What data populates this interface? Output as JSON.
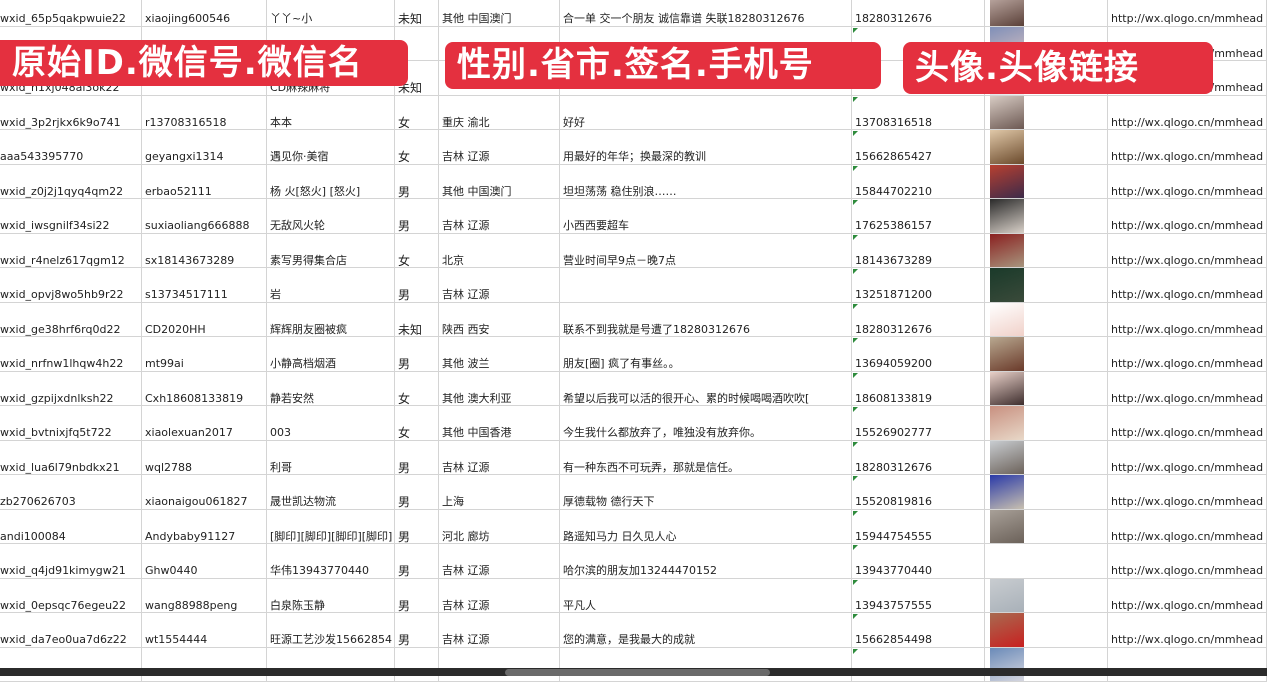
{
  "banners": [
    "原始ID.微信号.微信名",
    "性别.省市.签名.手机号",
    "头像.头像链接"
  ],
  "colors": {
    "banner": "#e4303f",
    "grid": "#d4d4d4",
    "comment_marker": "#2e8b3c"
  },
  "rows": [
    {
      "id": "wxid_65p5qakpwuie22",
      "wxno": "xiaojing600546",
      "name": "丫丫~小",
      "gender": "未知",
      "region": "其他 中国澳门",
      "sign": "合一单 交一个朋友 诚信靠谱 失联18280312676",
      "phone": "18280312676",
      "url": "http://wx.qlogo.cn/mmhead",
      "avatar": [
        "#c9b6b0",
        "#5a4038"
      ]
    },
    {
      "id": "",
      "wxno": "",
      "name": "",
      "gender": "",
      "region": "",
      "sign": "",
      "phone": "",
      "url": "http://wx.qlogo.cn/mmhead",
      "avatar": [
        "#7f8fb8",
        "#d8c0c0"
      ]
    },
    {
      "id": "wxid_h1xj048al3ok22",
      "wxno": "",
      "name": "CD麻辣麻将",
      "gender": "未知",
      "region": "",
      "sign": "",
      "phone": "",
      "url": "http://wx.qlogo.cn/mmhead",
      "avatar": [
        "#c8c8d0",
        "#f0f0f0"
      ]
    },
    {
      "id": "wxid_3p2rjkx6k9o741",
      "wxno": "r13708316518",
      "name": "本本",
      "gender": "女",
      "region": "重庆 渝北",
      "sign": "好好",
      "phone": "13708316518",
      "url": "http://wx.qlogo.cn/mmhead",
      "avatar": [
        "#d8ccc4",
        "#6a5650"
      ]
    },
    {
      "id": "aaa543395770",
      "wxno": "geyangxi1314",
      "name": "遇见你·美宿",
      "gender": "女",
      "region": "吉林 辽源",
      "sign": "用最好的年华；换最深的教训",
      "phone": "15662865427",
      "url": "http://wx.qlogo.cn/mmhead",
      "avatar": [
        "#e0c8a8",
        "#6b4a2c"
      ]
    },
    {
      "id": "wxid_z0j2j1qyq4qm22",
      "wxno": "erbao52111",
      "name": "杨 火[怒火] [怒火]",
      "gender": "男",
      "region": "其他 中国澳门",
      "sign": "坦坦荡荡 稳住别浪……",
      "phone": "15844702210",
      "url": "http://wx.qlogo.cn/mmhead",
      "avatar": [
        "#b84030",
        "#3a2a4a"
      ]
    },
    {
      "id": "wxid_iwsgnilf34si22",
      "wxno": "suxiaoliang666888",
      "name": "无敌风火轮",
      "gender": "男",
      "region": "吉林 辽源",
      "sign": "小西西要超车",
      "phone": "17625386157",
      "url": "http://wx.qlogo.cn/mmhead",
      "avatar": [
        "#2a2a2a",
        "#d8d0c8"
      ]
    },
    {
      "id": "wxid_r4nelz617qgm12",
      "wxno": "sx18143673289",
      "name": "素写男得集合店",
      "gender": "女",
      "region": "北京",
      "sign": "营业时间早9点－晚7点",
      "phone": "18143673289",
      "url": "http://wx.qlogo.cn/mmhead",
      "avatar": [
        "#8a2020",
        "#a89880"
      ]
    },
    {
      "id": "wxid_opvj8wo5hb9r22",
      "wxno": "s13734517111",
      "name": "岩",
      "gender": "男",
      "region": "吉林 辽源",
      "sign": "",
      "phone": "13251871200",
      "url": "http://wx.qlogo.cn/mmhead",
      "avatar": [
        "#1a3a2a",
        "#3a4a3a"
      ]
    },
    {
      "id": "wxid_ge38hrf6rq0d22",
      "wxno": "CD2020HH",
      "name": "辉辉朋友圈被疯",
      "gender": "未知",
      "region": "陕西 西安",
      "sign": "联系不到我就是号遭了18280312676",
      "phone": "18280312676",
      "url": "http://wx.qlogo.cn/mmhead",
      "avatar": [
        "#ffffff",
        "#f0d0c8"
      ]
    },
    {
      "id": "wxid_nrfnw1lhqw4h22",
      "wxno": "mt99ai",
      "name": "小静高档烟酒",
      "gender": "男",
      "region": "其他 波兰",
      "sign": "朋友[圈] 疯了有事丝。。",
      "phone": "13694059200",
      "url": "http://wx.qlogo.cn/mmhead",
      "avatar": [
        "#b8a890",
        "#6a3a2a"
      ]
    },
    {
      "id": "wxid_gzpijxdnlksh22",
      "wxno": "Cxh18608133819",
      "name": "静若安然",
      "gender": "女",
      "region": "其他 澳大利亚",
      "sign": "希望以后我可以活的很开心、累的时候喝喝酒吹吹[",
      "phone": "18608133819",
      "url": "http://wx.qlogo.cn/mmhead",
      "avatar": [
        "#e8d0c8",
        "#3a2a2a"
      ]
    },
    {
      "id": "wxid_bvtnixjfq5t722",
      "wxno": "xiaolexuan2017",
      "name": "003",
      "gender": "女",
      "region": "其他 中国香港",
      "sign": "今生我什么都放弃了，唯独没有放弃你。",
      "phone": "15526902777",
      "url": "http://wx.qlogo.cn/mmhead",
      "avatar": [
        "#c89080",
        "#e8d8c8"
      ]
    },
    {
      "id": "wxid_lua6l79nbdkx21",
      "wxno": "wql2788",
      "name": "利哥",
      "gender": "男",
      "region": "吉林 辽源",
      "sign": "有一种东西不可玩弄，那就是信任。",
      "phone": "18280312676",
      "url": "http://wx.qlogo.cn/mmhead",
      "avatar": [
        "#c8ccd0",
        "#6a6058"
      ]
    },
    {
      "id": "zb270626703",
      "wxno": "xiaonaigou061827",
      "name": "晟世凯达物流",
      "gender": "男",
      "region": "上海",
      "sign": "厚德载物 德行天下",
      "phone": "15520819816",
      "url": "http://wx.qlogo.cn/mmhead",
      "avatar": [
        "#2a3aa8",
        "#c8c0b0"
      ]
    },
    {
      "id": "andi100084",
      "wxno": "Andybaby91127",
      "name": "[脚印][脚印][脚印][脚印]",
      "gender": "男",
      "region": "河北 廊坊",
      "sign": "路遥知马力 日久见人心",
      "phone": "15944754555",
      "url": "http://wx.qlogo.cn/mmhead",
      "avatar": [
        "#a8a098",
        "#6a6058"
      ]
    },
    {
      "id": "wxid_q4jd91kimygw21",
      "wxno": "Ghw0440",
      "name": "华伟13943770440",
      "gender": "男",
      "region": "吉林 辽源",
      "sign": "哈尔滨的朋友加13244470152",
      "phone": "13943770440",
      "url": "http://wx.qlogo.cn/mmhead",
      "avatar": [
        "#ffffff",
        "#ffffff"
      ]
    },
    {
      "id": "wxid_0epsqc76egeu22",
      "wxno": "wang88988peng",
      "name": "白泉陈玉静",
      "gender": "男",
      "region": "吉林 辽源",
      "sign": "平凡人",
      "phone": "13943757555",
      "url": "http://wx.qlogo.cn/mmhead",
      "avatar": [
        "#c8ccd0",
        "#a8b0b8"
      ]
    },
    {
      "id": "wxid_da7eo0ua7d6z22",
      "wxno": "wt1554444",
      "name": "旺源工艺沙发15662854",
      "gender": "男",
      "region": "吉林 辽源",
      "sign": "您的满意，是我最大的成就",
      "phone": "15662854498",
      "url": "http://wx.qlogo.cn/mmhead",
      "avatar": [
        "#a86a50",
        "#c82020"
      ]
    },
    {
      "id": "",
      "wxno": "",
      "name": "",
      "gender": "",
      "region": "",
      "sign": "",
      "phone": "",
      "url": "",
      "avatar": [
        "#6a8ab8",
        "#d8d8e0"
      ]
    }
  ]
}
